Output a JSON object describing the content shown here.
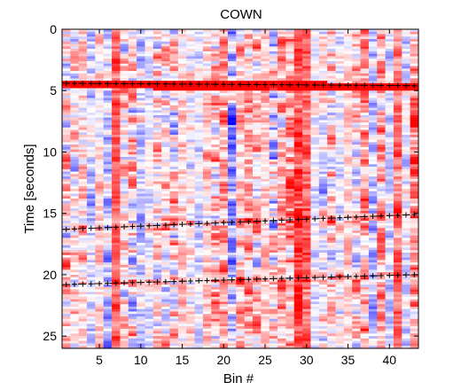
{
  "chart_data": {
    "type": "heatmap",
    "title": "COWN",
    "xlabel": "Bin #",
    "ylabel": "Time [seconds]",
    "xlim": [
      0.5,
      43.5
    ],
    "ylim": [
      0,
      26
    ],
    "y_inverted": true,
    "bins": 43,
    "x_ticks": [
      5,
      10,
      15,
      20,
      25,
      30,
      35,
      40
    ],
    "x_tick_labels": [
      "5",
      "10",
      "15",
      "20",
      "25",
      "30",
      "35",
      "40"
    ],
    "y_ticks": [
      0,
      5,
      10,
      15,
      20,
      25
    ],
    "y_tick_labels": [
      "0",
      "5",
      "10",
      "15",
      "20",
      "25"
    ],
    "colormap": {
      "negative": "#0000ff",
      "zero": "#ffffff",
      "positive": "#ff0000"
    },
    "picked_arrivals": [
      {
        "name": "pick-1",
        "x": [
          1,
          43
        ],
        "y": [
          4.4,
          4.6
        ]
      },
      {
        "name": "pick-2",
        "x": [
          1,
          43
        ],
        "y": [
          16.3,
          15.1
        ]
      },
      {
        "name": "pick-3",
        "x": [
          1,
          43
        ],
        "y": [
          20.8,
          20.0
        ]
      }
    ]
  }
}
